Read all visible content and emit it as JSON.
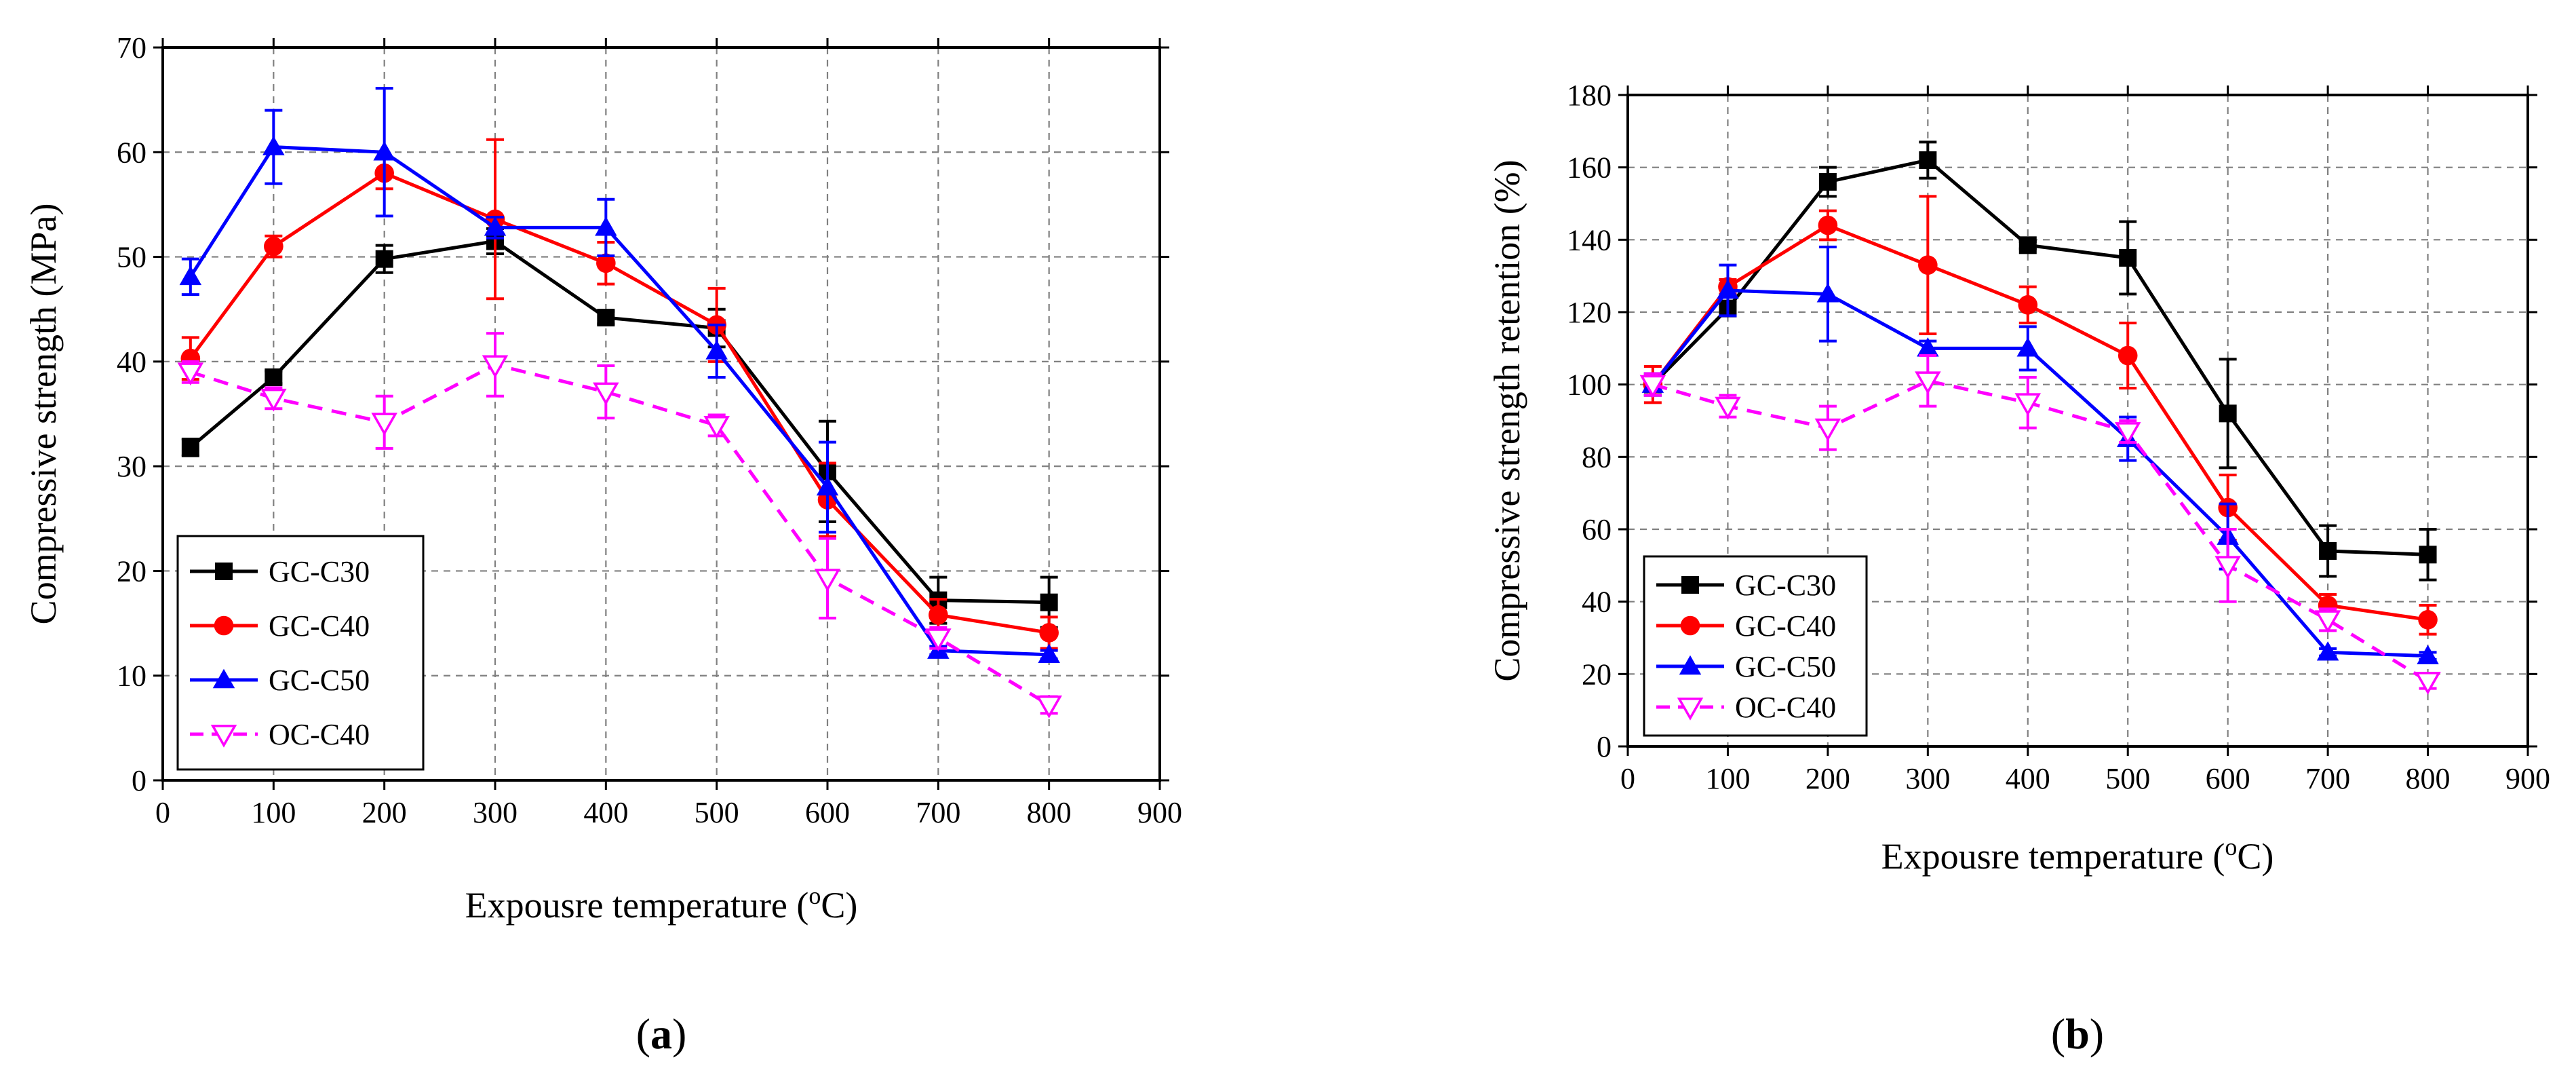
{
  "colors": {
    "GC-C30": "#000000",
    "GC-C40": "#ff0000",
    "GC-C50": "#0000ff",
    "OC-C40": "#ff00ff"
  },
  "chart_data": [
    {
      "type": "line",
      "panel_label_open": "(",
      "panel_label_letter": "a",
      "panel_label_close": ")",
      "xlabel": "Expousre temperature (",
      "xlabel_sup": "o",
      "xlabel_end": "C)",
      "ylabel": "Compressive strength (MPa)",
      "xlim": [
        0,
        900
      ],
      "ylim": [
        0,
        70
      ],
      "xticks": [
        0,
        100,
        200,
        300,
        400,
        500,
        600,
        700,
        800,
        900
      ],
      "yticks": [
        0,
        10,
        20,
        30,
        40,
        50,
        60,
        70
      ],
      "legend_position": "bottom-left",
      "x": [
        25,
        100,
        200,
        300,
        400,
        500,
        600,
        700,
        800
      ],
      "series": [
        {
          "name": "GC-C30",
          "color": "#000000",
          "marker": "square",
          "dashed": false,
          "values": [
            31.8,
            38.5,
            49.8,
            51.5,
            44.2,
            43.2,
            29.5,
            17.2,
            17.0
          ],
          "errors": [
            0.8,
            0.6,
            1.3,
            1.2,
            0.6,
            1.8,
            4.8,
            2.2,
            2.4
          ]
        },
        {
          "name": "GC-C40",
          "color": "#ff0000",
          "marker": "circle",
          "dashed": false,
          "values": [
            40.3,
            51.0,
            58.0,
            53.6,
            49.4,
            43.5,
            26.8,
            15.8,
            14.1
          ],
          "errors": [
            2.0,
            1.0,
            1.5,
            7.6,
            2.0,
            3.5,
            3.5,
            1.5,
            1.5
          ]
        },
        {
          "name": "GC-C50",
          "color": "#0000ff",
          "marker": "triangle-up",
          "dashed": false,
          "values": [
            48.1,
            60.5,
            60.0,
            52.8,
            52.8,
            41.0,
            28.0,
            12.4,
            12.0
          ],
          "errors": [
            1.7,
            3.5,
            6.1,
            1.0,
            2.7,
            2.5,
            4.3,
            0.4,
            0.4
          ]
        },
        {
          "name": "OC-C40",
          "color": "#ff00ff",
          "marker": "triangle-down",
          "dashed": true,
          "values": [
            39.0,
            36.5,
            34.2,
            39.7,
            37.1,
            33.9,
            19.3,
            13.6,
            7.2
          ],
          "errors": [
            1.0,
            1.0,
            2.5,
            3.0,
            2.5,
            1.0,
            3.8,
            1.0,
            0.8
          ]
        }
      ]
    },
    {
      "type": "line",
      "panel_label_open": "(",
      "panel_label_letter": "b",
      "panel_label_close": ")",
      "xlabel": "Expousre temperature (",
      "xlabel_sup": "o",
      "xlabel_end": "C)",
      "ylabel": "Compressive strength retention (%)",
      "xlim": [
        0,
        900
      ],
      "ylim": [
        0,
        180
      ],
      "xticks": [
        0,
        100,
        200,
        300,
        400,
        500,
        600,
        700,
        800,
        900
      ],
      "yticks": [
        0,
        20,
        40,
        60,
        80,
        100,
        120,
        140,
        160,
        180
      ],
      "legend_position": "bottom-left",
      "x": [
        25,
        100,
        200,
        300,
        400,
        500,
        600,
        700,
        800
      ],
      "series": [
        {
          "name": "GC-C30",
          "color": "#000000",
          "marker": "square",
          "dashed": false,
          "values": [
            100,
            121,
            156,
            162,
            138.5,
            135,
            92,
            54,
            53
          ],
          "errors": [
            3,
            2,
            4,
            5,
            1,
            10,
            15,
            7,
            7
          ]
        },
        {
          "name": "GC-C40",
          "color": "#ff0000",
          "marker": "circle",
          "dashed": false,
          "values": [
            100,
            127,
            144,
            133,
            122,
            108,
            66,
            39,
            35
          ],
          "errors": [
            5,
            2,
            4,
            19,
            5,
            9,
            9,
            3,
            4
          ]
        },
        {
          "name": "GC-C50",
          "color": "#0000ff",
          "marker": "triangle-up",
          "dashed": false,
          "values": [
            100,
            126,
            125,
            110,
            110,
            85,
            58,
            26,
            25
          ],
          "errors": [
            3,
            7,
            13,
            2,
            6,
            6,
            9,
            1,
            1
          ]
        },
        {
          "name": "OC-C40",
          "color": "#ff00ff",
          "marker": "triangle-down",
          "dashed": true,
          "values": [
            100,
            94,
            88,
            101,
            95,
            87,
            50,
            35,
            18
          ],
          "errors": [
            3,
            3,
            6,
            7,
            7,
            3,
            10,
            3,
            2
          ]
        }
      ]
    }
  ]
}
